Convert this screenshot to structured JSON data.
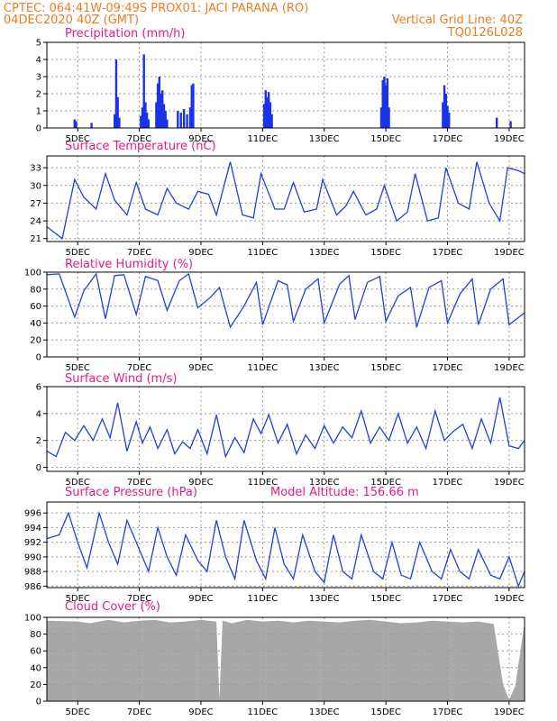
{
  "header": {
    "line1_left": "CPTEC:   064:41W-09:49S   PROX01: JACI PARANA (RO)",
    "line2_left": "04DEC2020 40Z (GMT)",
    "line2_right": "Vertical Grid Line: 40Z",
    "line3_right": "TQ0126L028"
  },
  "x_labels": [
    "5DEC",
    "7DEC",
    "9DEC",
    "11DEC",
    "13DEC",
    "15DEC",
    "17DEC",
    "19DEC"
  ],
  "colors": {
    "series": "#2040e0",
    "bar": "#1a32e8",
    "cloud": "#a8a8a8",
    "title": "#e8198b",
    "header": "#ee7d22"
  },
  "chart_data": [
    {
      "type": "bar",
      "title": "Precipitation (mm/h)",
      "ylim": [
        0,
        5
      ],
      "yticks": [
        0,
        1,
        2,
        3,
        4,
        5
      ],
      "x_days": [
        4.9,
        4.95,
        5.45,
        6.2,
        6.25,
        6.3,
        6.35,
        7.05,
        7.1,
        7.15,
        7.2,
        7.25,
        7.3,
        7.55,
        7.6,
        7.65,
        7.7,
        7.75,
        7.8,
        7.85,
        7.9,
        8.25,
        8.35,
        8.45,
        8.55,
        8.65,
        8.7,
        8.75,
        11.05,
        11.1,
        11.15,
        11.2,
        11.25,
        11.3,
        14.85,
        14.9,
        14.95,
        15.0,
        15.05,
        15.1,
        16.85,
        16.9,
        16.95,
        17.0,
        17.05,
        18.6,
        19.05
      ],
      "values": [
        0.5,
        0.4,
        0.3,
        0.8,
        4.0,
        1.8,
        0.6,
        0.7,
        1.2,
        4.3,
        1.5,
        0.9,
        0.5,
        1.5,
        2.6,
        3.0,
        2.0,
        2.2,
        1.4,
        1.0,
        0.5,
        1.0,
        0.9,
        1.1,
        0.8,
        1.2,
        2.5,
        2.6,
        1.4,
        2.2,
        1.8,
        2.1,
        1.5,
        0.8,
        1.2,
        2.8,
        3.0,
        2.5,
        2.9,
        1.2,
        1.5,
        2.5,
        2.0,
        1.3,
        0.9,
        0.6,
        0.4
      ]
    },
    {
      "type": "line",
      "title": "Surface Temperature (nC)",
      "ylim": [
        20.5,
        35
      ],
      "yticks": [
        21,
        24,
        27,
        30,
        33
      ],
      "x": [
        4.0,
        4.5,
        4.9,
        5.2,
        5.6,
        5.9,
        6.2,
        6.6,
        6.9,
        7.2,
        7.6,
        7.9,
        8.2,
        8.6,
        8.9,
        9.25,
        9.5,
        9.95,
        10.35,
        10.7,
        10.95,
        11.4,
        11.7,
        12.0,
        12.35,
        12.75,
        12.95,
        13.4,
        13.7,
        13.95,
        14.35,
        14.7,
        14.95,
        15.35,
        15.7,
        15.95,
        16.35,
        16.7,
        16.95,
        17.35,
        17.7,
        17.95,
        18.35,
        18.7,
        18.95,
        19.3,
        19.5
      ],
      "values": [
        23.0,
        21.0,
        31.0,
        28.0,
        26.0,
        32.0,
        27.5,
        25.0,
        30.5,
        26.0,
        25.0,
        29.5,
        27.0,
        26.0,
        29.0,
        28.5,
        25.0,
        34.0,
        25.0,
        24.5,
        32.0,
        26.0,
        26.0,
        30.5,
        25.5,
        26.0,
        31.0,
        25.0,
        26.5,
        29.0,
        25.0,
        26.0,
        30.0,
        24.0,
        25.5,
        32.0,
        24.0,
        24.5,
        33.0,
        27.0,
        26.0,
        34.0,
        27.0,
        24.0,
        33.0,
        32.5,
        32.0
      ]
    },
    {
      "type": "line",
      "title": "Relative Humidity (%)",
      "ylim": [
        0,
        100
      ],
      "yticks": [
        0,
        20,
        40,
        60,
        80,
        100
      ],
      "x": [
        4.0,
        4.4,
        4.9,
        5.2,
        5.6,
        5.9,
        6.2,
        6.5,
        6.9,
        7.2,
        7.6,
        7.9,
        8.3,
        8.6,
        8.9,
        9.3,
        9.6,
        9.95,
        10.4,
        10.8,
        11.0,
        11.5,
        11.8,
        12.0,
        12.4,
        12.8,
        13.0,
        13.5,
        13.8,
        14.0,
        14.4,
        14.8,
        15.0,
        15.4,
        15.8,
        16.0,
        16.4,
        16.8,
        17.0,
        17.4,
        17.8,
        18.0,
        18.4,
        18.8,
        19.0,
        19.5
      ],
      "values": [
        97.0,
        98.0,
        47.0,
        78.0,
        98.0,
        45.0,
        96.0,
        97.0,
        50.0,
        95.0,
        90.0,
        55.0,
        90.0,
        98.0,
        58.0,
        70.0,
        82.0,
        35.0,
        60.0,
        88.0,
        38.0,
        90.0,
        85.0,
        42.0,
        80.0,
        92.0,
        40.0,
        86.0,
        96.0,
        44.0,
        88.0,
        95.0,
        42.0,
        72.0,
        82.0,
        35.0,
        82.0,
        90.0,
        40.0,
        74.0,
        92.0,
        38.0,
        80.0,
        92.0,
        38.0,
        52.0
      ]
    },
    {
      "type": "line",
      "title": "Surface Wind (m/s)",
      "ylim": [
        -0.3,
        6
      ],
      "yticks": [
        0,
        2,
        4,
        6
      ],
      "x": [
        4.0,
        4.3,
        4.6,
        4.9,
        5.2,
        5.5,
        5.8,
        6.05,
        6.3,
        6.6,
        6.9,
        7.1,
        7.35,
        7.6,
        7.9,
        8.15,
        8.4,
        8.65,
        8.9,
        9.2,
        9.5,
        9.8,
        10.1,
        10.4,
        10.7,
        10.95,
        11.2,
        11.5,
        11.8,
        12.1,
        12.4,
        12.7,
        13.0,
        13.3,
        13.6,
        13.9,
        14.2,
        14.5,
        14.8,
        15.1,
        15.4,
        15.7,
        16.0,
        16.3,
        16.6,
        16.9,
        17.2,
        17.5,
        17.8,
        18.1,
        18.4,
        18.7,
        19.0,
        19.3,
        19.5
      ],
      "values": [
        1.2,
        0.8,
        2.6,
        2.0,
        3.1,
        2.0,
        3.6,
        2.2,
        4.8,
        1.2,
        3.4,
        1.8,
        3.0,
        1.4,
        2.8,
        1.0,
        1.9,
        1.4,
        2.8,
        1.0,
        3.9,
        0.8,
        2.2,
        1.1,
        3.6,
        2.5,
        3.9,
        1.8,
        3.2,
        1.0,
        2.4,
        1.4,
        3.1,
        1.8,
        3.0,
        2.2,
        4.2,
        1.8,
        3.0,
        2.0,
        4.0,
        1.8,
        3.0,
        1.4,
        4.2,
        2.0,
        2.7,
        3.2,
        1.4,
        3.6,
        1.8,
        5.2,
        1.6,
        1.4,
        2.0
      ]
    },
    {
      "type": "line",
      "title": "Surface Pressure (hPa)",
      "annotation": "Model Altitude: 156.66 m",
      "ylim": [
        985.8,
        997.5
      ],
      "yticks": [
        986,
        988,
        990,
        992,
        994,
        996
      ],
      "x": [
        4.0,
        4.4,
        4.7,
        5.0,
        5.3,
        5.7,
        6.0,
        6.3,
        6.6,
        7.0,
        7.3,
        7.6,
        7.9,
        8.2,
        8.5,
        8.9,
        9.2,
        9.5,
        9.8,
        10.1,
        10.4,
        10.8,
        11.1,
        11.4,
        11.7,
        12.0,
        12.3,
        12.7,
        13.0,
        13.3,
        13.6,
        13.9,
        14.2,
        14.6,
        14.9,
        15.2,
        15.5,
        15.8,
        16.1,
        16.5,
        16.8,
        17.1,
        17.4,
        17.7,
        18.0,
        18.4,
        18.7,
        19.0,
        19.3,
        19.5
      ],
      "values": [
        992.5,
        993.0,
        996.0,
        992.0,
        988.5,
        996.0,
        992.0,
        989.0,
        995.0,
        991.0,
        988.0,
        994.0,
        990.0,
        987.5,
        993.0,
        989.5,
        988.0,
        995.0,
        990.0,
        987.0,
        995.0,
        989.5,
        987.0,
        994.0,
        989.0,
        987.0,
        993.0,
        988.0,
        986.5,
        993.0,
        988.0,
        987.0,
        993.0,
        988.0,
        987.0,
        992.0,
        987.5,
        987.0,
        992.0,
        988.0,
        987.0,
        991.0,
        988.0,
        987.0,
        991.0,
        987.5,
        987.0,
        990.0,
        986.0,
        988.0
      ]
    },
    {
      "type": "area",
      "title": "Cloud Cover (%)",
      "ylim": [
        0,
        100
      ],
      "yticks": [
        0,
        20,
        40,
        60,
        80,
        100
      ],
      "x": [
        4.0,
        5.0,
        5.4,
        6.0,
        6.5,
        7.0,
        7.5,
        8.0,
        8.5,
        9.0,
        9.5,
        9.6,
        9.7,
        10.0,
        10.5,
        11.0,
        11.5,
        12.0,
        12.5,
        13.0,
        13.5,
        14.0,
        14.5,
        15.0,
        15.5,
        16.0,
        16.5,
        17.0,
        17.5,
        18.0,
        18.5,
        18.8,
        19.0,
        19.2,
        19.5
      ],
      "values": [
        96,
        95,
        93,
        97,
        94,
        96,
        97,
        94,
        95,
        97,
        95,
        2,
        96,
        93,
        97,
        95,
        96,
        94,
        96,
        95,
        94,
        96,
        97,
        95,
        93,
        94,
        96,
        95,
        94,
        95,
        92,
        20,
        2,
        18,
        94
      ]
    }
  ]
}
